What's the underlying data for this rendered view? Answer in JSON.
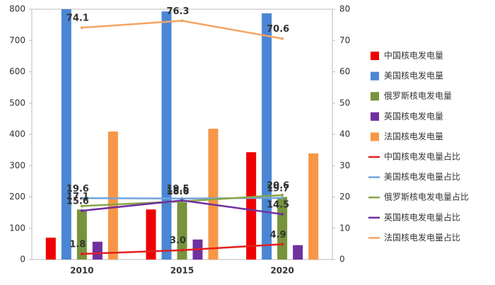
{
  "chart_data": {
    "type": "bar",
    "categories": [
      "2010",
      "2015",
      "2020"
    ],
    "ylim": [
      0,
      800
    ],
    "yticks": [
      0,
      100,
      200,
      300,
      400,
      500,
      600,
      700,
      800
    ],
    "y2lim": [
      0,
      80
    ],
    "y2ticks": [
      0,
      10,
      20,
      30,
      40,
      50,
      60,
      70,
      80
    ],
    "grid": false,
    "legend": "right",
    "series": [
      {
        "name": "中国核电发电量",
        "type": "bar",
        "color": "#ee0000",
        "values": [
          70,
          160,
          343
        ]
      },
      {
        "name": "美国核电发电量",
        "type": "bar",
        "color": "#4a86d4",
        "values": [
          807,
          793,
          787
        ]
      },
      {
        "name": "俄罗斯核电发电量",
        "type": "bar",
        "color": "#77933c",
        "values": [
          160,
          183,
          200
        ]
      },
      {
        "name": "英国核电发电量",
        "type": "bar",
        "color": "#7030a0",
        "values": [
          57,
          64,
          46
        ]
      },
      {
        "name": "法国核电发电量",
        "type": "bar",
        "color": "#f79646",
        "values": [
          409,
          418,
          339
        ]
      },
      {
        "name": "中国核电发电量占比",
        "type": "line",
        "axis": "y2",
        "color": "#e0201c",
        "values": [
          1.8,
          3.0,
          4.9
        ],
        "value_labels": [
          "1.8",
          "3.0",
          "4.9"
        ]
      },
      {
        "name": "美国核电发电量占比",
        "type": "line",
        "axis": "y2",
        "color": "#6fa4dc",
        "values": [
          19.6,
          19.5,
          19.7
        ],
        "value_labels": [
          "19.6",
          "19.5",
          "19.7"
        ]
      },
      {
        "name": "俄罗斯核电发电量占比",
        "type": "line",
        "axis": "y2",
        "color": "#8aa64a",
        "values": [
          17.1,
          18.6,
          20.6
        ],
        "value_labels": [
          "17.1",
          "18.6",
          "20.6"
        ]
      },
      {
        "name": "英国核电发电量占比",
        "type": "line",
        "axis": "y2",
        "color": "#7030a0",
        "values": [
          15.6,
          18.9,
          14.5
        ],
        "value_labels": [
          "15.6",
          "18.9",
          "14.5"
        ]
      },
      {
        "name": "法国核电发电量占比",
        "type": "line",
        "axis": "y2",
        "color": "#f4a462",
        "values": [
          74.1,
          76.3,
          70.6
        ],
        "value_labels": [
          "74.1",
          "76.3",
          "70.6"
        ]
      }
    ]
  }
}
